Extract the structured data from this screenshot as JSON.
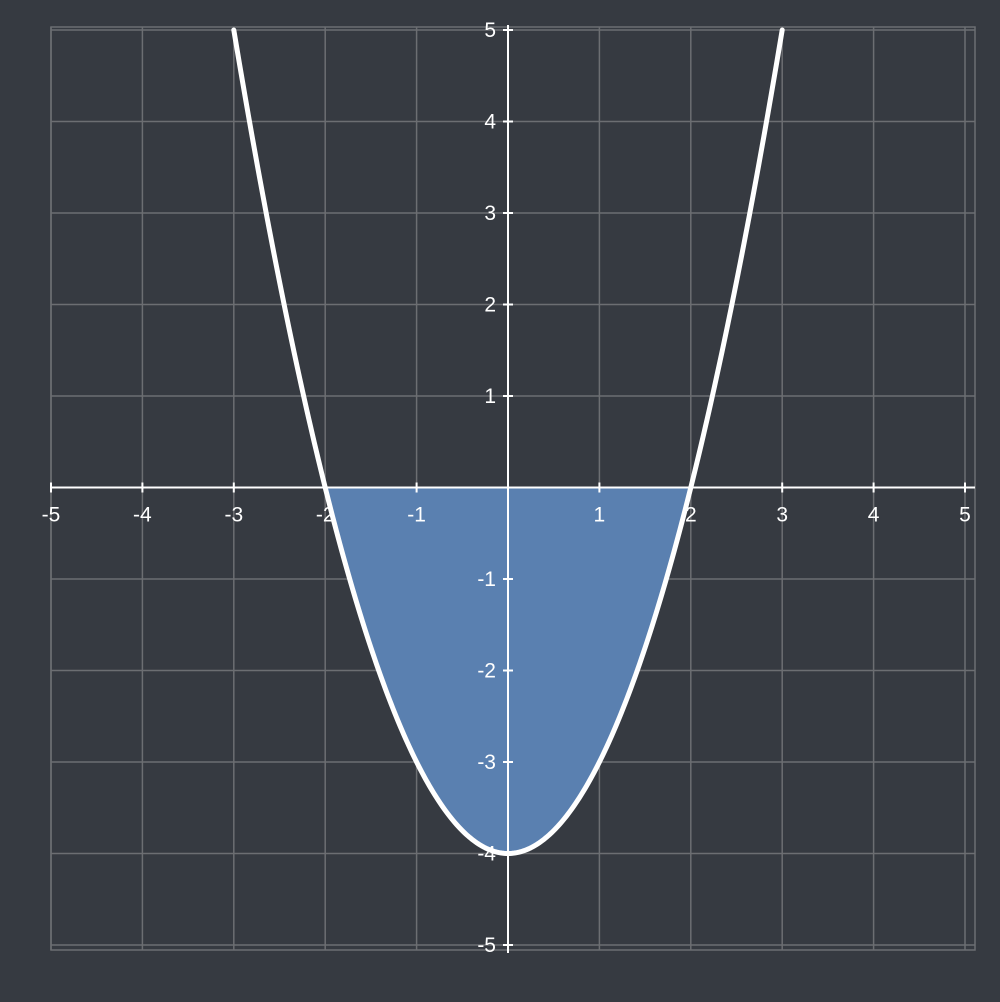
{
  "chart_data": {
    "type": "line",
    "title": "",
    "xlabel": "",
    "ylabel": "",
    "xlim": [
      -5,
      5
    ],
    "ylim": [
      -5,
      5
    ],
    "grid": true,
    "x_ticks": [
      "-5",
      "-4",
      "-3",
      "-2",
      "-1",
      "1",
      "2",
      "3",
      "4",
      "5"
    ],
    "y_ticks": [
      "5",
      "4",
      "3",
      "2",
      "1",
      "-1",
      "-2",
      "-3",
      "-4",
      "-5"
    ],
    "series": [
      {
        "function": "y = x^2 - 4",
        "domain": [
          -3,
          3
        ],
        "x": [
          -3,
          -2.5,
          -2,
          -1.5,
          -1,
          -0.5,
          0,
          0.5,
          1,
          1.5,
          2,
          2.5,
          3
        ],
        "y": [
          5,
          2.25,
          0,
          -1.75,
          -3,
          -3.75,
          -4,
          -3.75,
          -3,
          -1.75,
          0,
          2.25,
          5
        ],
        "color": "#ffffff"
      }
    ],
    "shaded_region": {
      "between": "curve and x-axis",
      "x_range": [
        -2,
        2
      ],
      "color": "#5a80b0"
    },
    "colors": {
      "background": "#363a41",
      "grid": "#6c6e72",
      "axis": "#ffffff"
    }
  }
}
